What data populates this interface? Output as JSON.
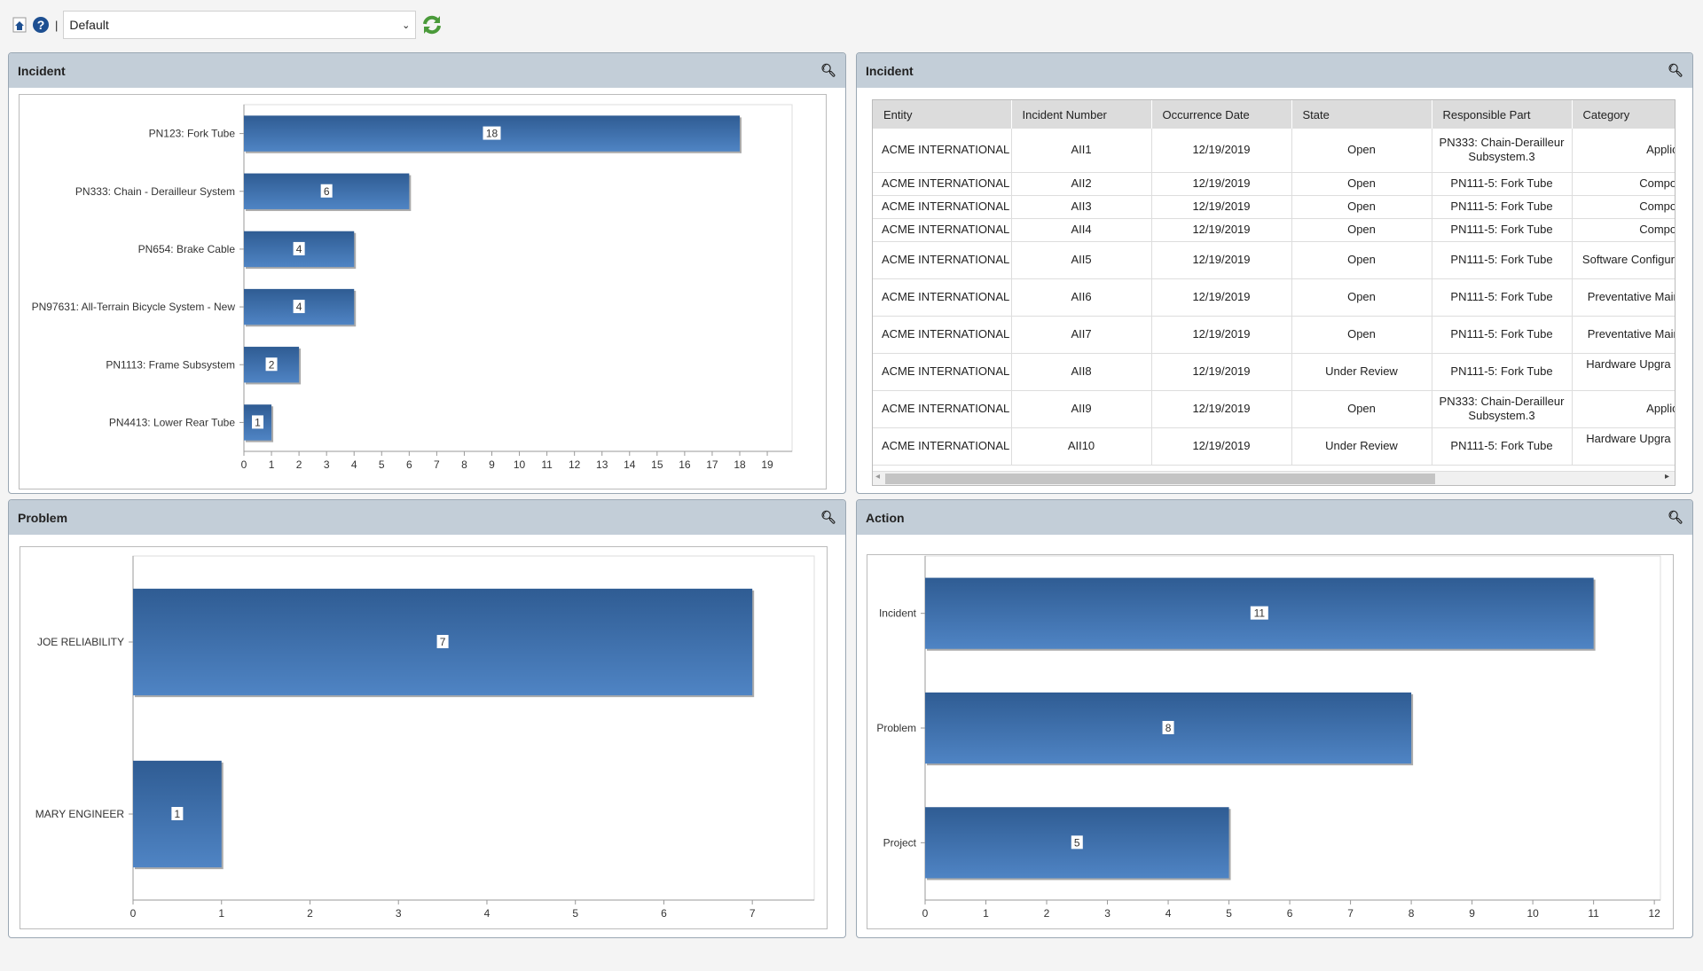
{
  "toolbar": {
    "home_icon": "home-icon",
    "help_icon": "help-icon",
    "separator": "|",
    "view_select": "Default",
    "refresh_icon": "refresh-icon"
  },
  "colors": {
    "bar_top": "#2f5c93",
    "bar_bottom": "#4f84c4",
    "header": "#c3ced8",
    "refresh": "#4a9a3a"
  },
  "panels": [
    {
      "title": "Incident"
    },
    {
      "title": "Incident"
    },
    {
      "title": "Problem"
    },
    {
      "title": "Action"
    }
  ],
  "chart_data": [
    {
      "type": "bar",
      "orientation": "horizontal",
      "categories": [
        "PN123: Fork Tube",
        "PN333: Chain - Derailleur System",
        "PN654: Brake Cable",
        "PN97631: All-Terrain Bicycle System - New",
        "PN1113: Frame Subsystem",
        "PN4413: Lower Rear Tube"
      ],
      "values": [
        18,
        6,
        4,
        4,
        2,
        1
      ],
      "xlim": [
        0,
        19.9
      ],
      "xticks": [
        "0",
        "1",
        "2",
        "3",
        "4",
        "5",
        "6",
        "7",
        "8",
        "9",
        "10",
        "11",
        "12",
        "13",
        "14",
        "15",
        "16",
        "17",
        "18",
        "19"
      ]
    },
    {
      "type": "bar",
      "orientation": "horizontal",
      "categories": [
        "JOE RELIABILITY",
        "MARY ENGINEER"
      ],
      "values": [
        7,
        1
      ],
      "xlim": [
        0,
        7.7
      ],
      "xticks": [
        "0",
        "1",
        "2",
        "3",
        "4",
        "5",
        "6",
        "7"
      ]
    },
    {
      "type": "bar",
      "orientation": "horizontal",
      "categories": [
        "Incident",
        "Problem",
        "Project"
      ],
      "values": [
        11,
        8,
        5
      ],
      "xlim": [
        0,
        12.1
      ],
      "xticks": [
        "0",
        "1",
        "2",
        "3",
        "4",
        "5",
        "6",
        "7",
        "8",
        "9",
        "10",
        "11",
        "12"
      ]
    }
  ],
  "table": {
    "columns": [
      "Entity",
      "Incident Number",
      "Occurrence Date",
      "State",
      "Responsible Part",
      "Category"
    ],
    "rows": [
      [
        "ACME INTERNATIONAL",
        "AII1",
        "12/19/2019",
        "Open",
        "PN333: Chain-Derailleur Subsystem.3",
        "Application Iss"
      ],
      [
        "ACME INTERNATIONAL",
        "AII2",
        "12/19/2019",
        "Open",
        "PN111-5: Fork Tube",
        "Component Fail"
      ],
      [
        "ACME INTERNATIONAL",
        "AII3",
        "12/19/2019",
        "Open",
        "PN111-5: Fork Tube",
        "Component Fail"
      ],
      [
        "ACME INTERNATIONAL",
        "AII4",
        "12/19/2019",
        "Open",
        "PN111-5: Fork Tube",
        "Component Fail"
      ],
      [
        "ACME INTERNATIONAL",
        "AII5",
        "12/19/2019",
        "Open",
        "PN111-5: Fork Tube",
        "Software Configur Problem"
      ],
      [
        "ACME INTERNATIONAL",
        "AII6",
        "12/19/2019",
        "Open",
        "PN111-5: Fork Tube",
        "Preventative Maintenance"
      ],
      [
        "ACME INTERNATIONAL",
        "AII7",
        "12/19/2019",
        "Open",
        "PN111-5: Fork Tube",
        "Preventative Maintenance"
      ],
      [
        "ACME INTERNATIONAL",
        "AII8",
        "12/19/2019",
        "Under Review",
        "PN111-5: Fork Tube",
        "Hardware Upgra Required To Ope"
      ],
      [
        "ACME INTERNATIONAL",
        "AII9",
        "12/19/2019",
        "Open",
        "PN333: Chain-Derailleur Subsystem.3",
        "Application Iss"
      ],
      [
        "ACME INTERNATIONAL",
        "AII10",
        "12/19/2019",
        "Under Review",
        "PN111-5: Fork Tube",
        "Hardware Upgra Required To Ope"
      ]
    ]
  }
}
